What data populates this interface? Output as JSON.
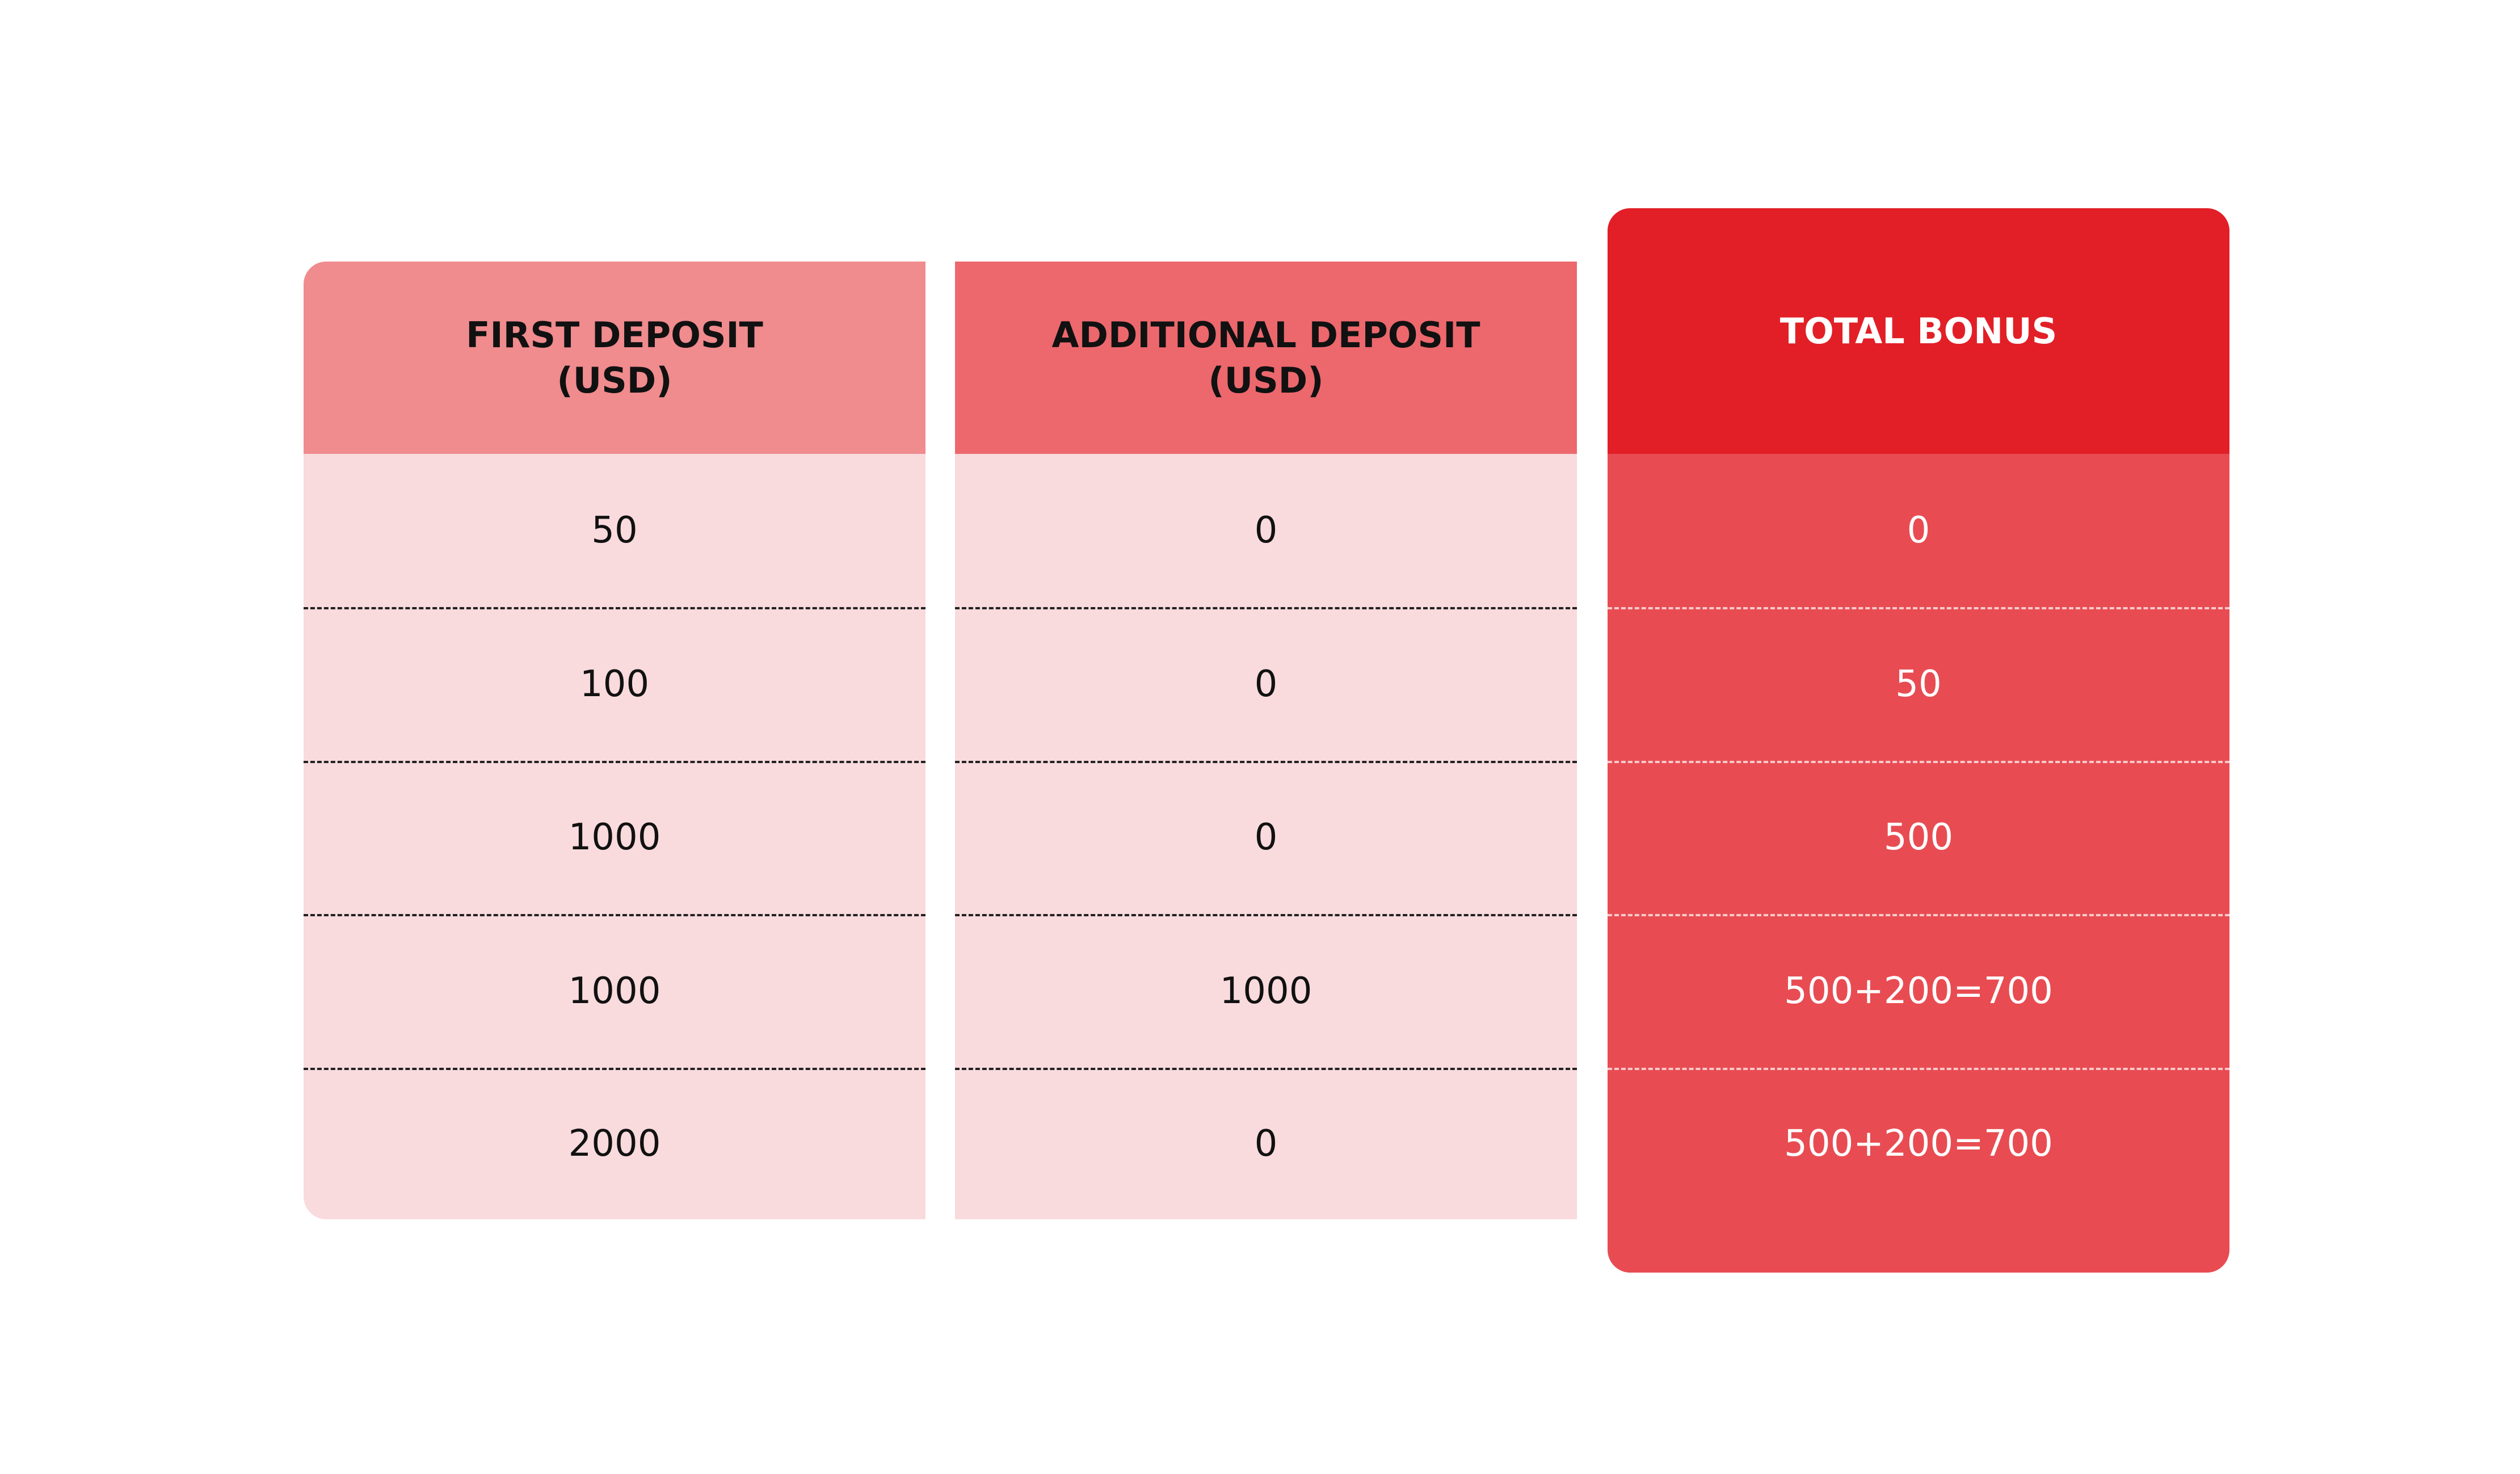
{
  "table": {
    "columns": [
      {
        "header": [
          "FIRST DEPOSIT",
          "(USD)"
        ]
      },
      {
        "header": [
          "ADDITIONAL DEPOSIT",
          "(USD)"
        ]
      },
      {
        "header": [
          "TOTAL BONUS"
        ]
      }
    ],
    "rows": [
      [
        50,
        0,
        0
      ],
      [
        100,
        0,
        50
      ],
      [
        1000,
        0,
        500
      ],
      [
        1000,
        1000,
        "500+200=700"
      ],
      [
        2000,
        0,
        "500+200=700"
      ]
    ]
  }
}
